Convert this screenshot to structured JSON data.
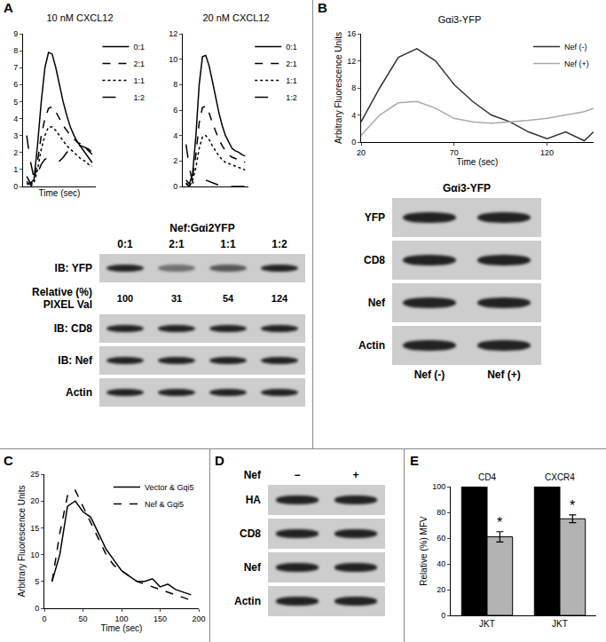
{
  "chart_data": [
    {
      "panel": "A",
      "type": "line",
      "title": "10 nM CXCL12",
      "x_label": "Time (sec)",
      "x": [
        10,
        20,
        30,
        40,
        50,
        60,
        70,
        80,
        90,
        100,
        110,
        120,
        130,
        140,
        150,
        160,
        170,
        180,
        190
      ],
      "series": [
        {
          "name": "0:1",
          "color": "#000000",
          "line_style": "solid",
          "values": [
            0.6,
            0.2,
            0.4,
            2.5,
            5,
            7,
            7.9,
            7.8,
            7,
            6,
            5,
            4.2,
            3.5,
            3,
            2.6,
            2.3,
            2,
            1.7,
            1.4
          ]
        },
        {
          "name": "2:1",
          "color": "#000000",
          "line_style": "dash",
          "values": [
            0.3,
            0.1,
            0.3,
            1.5,
            3,
            4,
            4.6,
            4.7,
            4.4,
            4,
            3.6,
            3.3,
            3,
            2.8,
            2.6,
            2.5,
            2.3,
            2.1,
            1.9
          ]
        },
        {
          "name": "1:1",
          "color": "#000000",
          "line_style": "dot",
          "values": [
            0.2,
            0,
            0.2,
            1,
            2.2,
            3,
            3.5,
            3.5,
            3.3,
            3,
            2.7,
            2.4,
            2.2,
            2,
            1.8,
            1.6,
            1.5,
            1.3,
            1.2
          ]
        },
        {
          "name": "1:2",
          "color": "#000000",
          "line_style": "longdash",
          "values": [
            3,
            1.5,
            0.5,
            0.8,
            1.3,
            1.6,
            1.7,
            1.7,
            1.6,
            1.5,
            1.7,
            2,
            2.2,
            2.3,
            2.4,
            2.4,
            2.3,
            2.2,
            2
          ]
        }
      ],
      "xlim": [
        0,
        200
      ],
      "ylim": [
        0,
        9
      ],
      "yticks": [
        0,
        1,
        2,
        3,
        4,
        5,
        6,
        7,
        8,
        9
      ],
      "tick_labels": "y",
      "grid": false,
      "legend": "right"
    },
    {
      "panel": "A",
      "type": "line",
      "title": "20 nM CXCL12",
      "x": [
        10,
        20,
        30,
        40,
        50,
        60,
        70,
        80,
        90,
        100,
        110,
        120,
        130,
        140,
        150,
        160,
        170,
        180,
        190
      ],
      "series": [
        {
          "name": "0:1",
          "color": "#000000",
          "line_style": "solid",
          "values": [
            0.5,
            0.2,
            1,
            4,
            8,
            10.2,
            10.3,
            9.5,
            8.3,
            7,
            5.8,
            4.8,
            4,
            3.5,
            3,
            2.8,
            2.7,
            2.5,
            2.4
          ]
        },
        {
          "name": "2:1",
          "color": "#000000",
          "line_style": "dash",
          "values": [
            0.3,
            0,
            0.8,
            2.5,
            5,
            6.2,
            6.3,
            5.8,
            5,
            4.3,
            3.7,
            3.2,
            2.8,
            2.5,
            2.3,
            2.2,
            2.1,
            2,
            1.9
          ]
        },
        {
          "name": "1:1",
          "color": "#000000",
          "line_style": "dot",
          "values": [
            0.2,
            0,
            0.5,
            1.5,
            3,
            3.9,
            4,
            3.7,
            3.2,
            2.8,
            2.4,
            2.1,
            1.9,
            1.8,
            1.7,
            1.6,
            1.5,
            1.4,
            1.3
          ]
        },
        {
          "name": "1:2",
          "color": "#000000",
          "line_style": "longdash",
          "values": [
            3.3,
            1.5,
            0.3,
            0.2,
            0.3,
            0.5,
            0.5,
            0.4,
            0.3,
            0.2,
            0.1,
            0,
            0,
            0,
            0,
            0,
            0,
            0,
            0
          ]
        }
      ],
      "xlim": [
        0,
        200
      ],
      "ylim": [
        0,
        12
      ],
      "yticks": [
        0,
        2,
        4,
        6,
        8,
        10,
        12
      ],
      "tick_labels": "y",
      "grid": false,
      "legend": "right"
    },
    {
      "panel": "B",
      "type": "line",
      "title": "Gαi3-YFP",
      "x_label": "Time (sec)",
      "y_label": "Arbitrary Fluorescence Units",
      "x": [
        20,
        30,
        40,
        50,
        60,
        70,
        80,
        90,
        100,
        110,
        120,
        130,
        140,
        145
      ],
      "series": [
        {
          "name": "Nef (-)",
          "color": "#333333",
          "line_style": "solid",
          "values": [
            3,
            8,
            12.5,
            13.8,
            12,
            8.5,
            6,
            4,
            3,
            1.5,
            0.5,
            1.5,
            0.2,
            1.5
          ]
        },
        {
          "name": "Nef (+)",
          "color": "#aaaaaa",
          "line_style": "solid",
          "values": [
            1,
            4,
            5.8,
            6,
            5,
            3.5,
            3,
            2.8,
            3,
            3.2,
            3.5,
            4,
            4.5,
            5
          ]
        }
      ],
      "xlim": [
        20,
        145
      ],
      "xticks": [
        20,
        70,
        120
      ],
      "ylim": [
        0,
        16
      ],
      "yticks": [
        0,
        4,
        8,
        12,
        16
      ],
      "grid": false,
      "legend": "upper right"
    },
    {
      "panel": "C",
      "type": "line",
      "x_label": "Time (sec)",
      "y_label": "Arbitrary Fluorescence Units",
      "x": [
        10,
        20,
        30,
        40,
        50,
        60,
        70,
        80,
        90,
        100,
        110,
        120,
        130,
        140,
        150,
        160,
        170,
        180,
        190
      ],
      "series": [
        {
          "name": "Vector & Gqi5",
          "color": "#000000",
          "line_style": "solid",
          "values": [
            5,
            10,
            19,
            20,
            18,
            17,
            14,
            11,
            9,
            7,
            6,
            5,
            5,
            5.5,
            4,
            4.5,
            3.5,
            3,
            2.5
          ]
        },
        {
          "name": "Nef & Gqi5",
          "color": "#000000",
          "line_style": "dash",
          "values": [
            5,
            14,
            21,
            22,
            19,
            16,
            13,
            10,
            8,
            7,
            6,
            5,
            4.5,
            4,
            3.5,
            3,
            2.5,
            2,
            1.5
          ]
        }
      ],
      "xlim": [
        0,
        200
      ],
      "xticks": [
        0,
        50,
        100,
        150,
        200
      ],
      "ylim": [
        0,
        25
      ],
      "yticks": [
        0,
        5,
        10,
        15,
        20,
        25
      ],
      "grid": false,
      "legend": "upper right"
    },
    {
      "panel": "E",
      "type": "bar",
      "y_label": "Relative (%) MFV",
      "categories": [
        "JKT",
        "JKT"
      ],
      "groups": [
        "CD4",
        "CXCR4"
      ],
      "series": [
        {
          "color": "#000000",
          "values": [
            100,
            100
          ]
        },
        {
          "color": "#b3b3b3",
          "values": [
            61,
            75
          ],
          "errors": [
            4,
            3
          ],
          "marks": [
            "*",
            "*"
          ]
        }
      ],
      "ylim": [
        0,
        100
      ],
      "yticks": [
        0,
        20,
        40,
        60,
        80,
        100
      ],
      "grid": false
    }
  ],
  "blots": [
    {
      "panel": "A",
      "header": "Nef:Gαi2YFP",
      "lanes": [
        "0:1",
        "2:1",
        "1:1",
        "1:2"
      ],
      "rows": [
        {
          "label": "IB: YFP"
        },
        {
          "label": "Relative (%) PIXEL Val",
          "values": [
            100,
            31,
            54,
            124
          ]
        },
        {
          "label": "IB: CD8"
        },
        {
          "label": "IB: Nef"
        },
        {
          "label": "Actin"
        }
      ]
    },
    {
      "panel": "B",
      "title": "Gαi3-YFP",
      "footer_lanes": [
        "Nef (-)",
        "Nef (+)"
      ],
      "rows": [
        {
          "label": "YFP"
        },
        {
          "label": "CD8"
        },
        {
          "label": "Nef"
        },
        {
          "label": "Actin"
        }
      ]
    },
    {
      "panel": "D",
      "lane_label": "Nef",
      "lanes": [
        "−",
        "+"
      ],
      "rows": [
        {
          "label": "HA"
        },
        {
          "label": "CD8"
        },
        {
          "label": "Nef"
        },
        {
          "label": "Actin"
        }
      ]
    }
  ]
}
